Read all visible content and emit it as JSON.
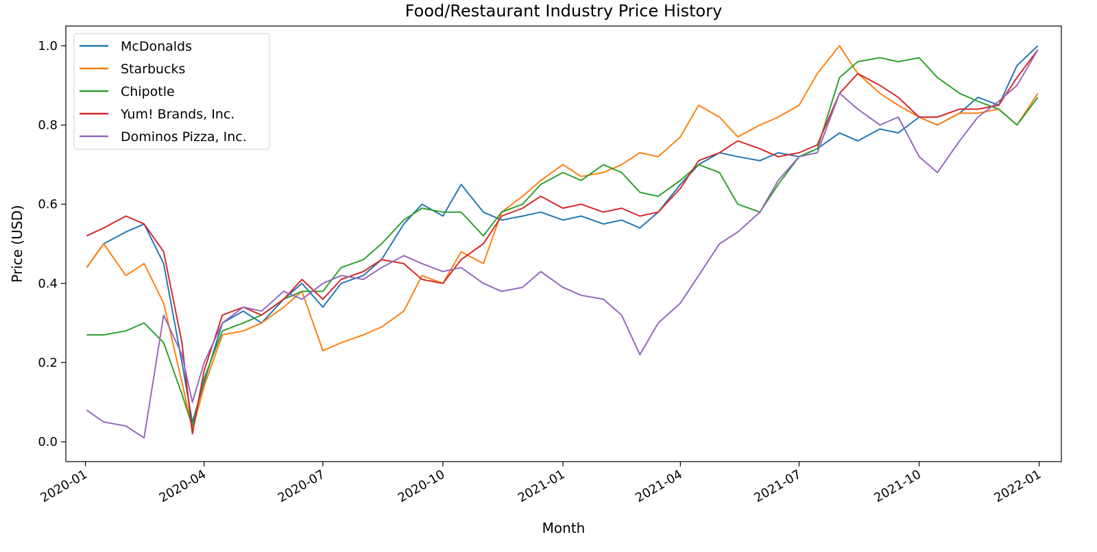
{
  "chart_data": {
    "type": "line",
    "title": "Food/Restaurant Industry Price History",
    "xlabel": "Month",
    "ylabel": "Price (USD)",
    "x_ticks": [
      "2020-01",
      "2020-04",
      "2020-07",
      "2020-10",
      "2021-01",
      "2021-04",
      "2021-07",
      "2021-10",
      "2022-01"
    ],
    "y_ticks": [
      "0.0",
      "0.2",
      "0.4",
      "0.6",
      "0.8",
      "1.0"
    ],
    "xlim": [
      "2019-12-17",
      "2022-01-18"
    ],
    "ylim": [
      -0.05,
      1.05
    ],
    "grid": false,
    "legend_position": "top-left",
    "x": [
      "2020-01-02",
      "2020-01-15",
      "2020-02-01",
      "2020-02-15",
      "2020-03-01",
      "2020-03-15",
      "2020-03-23",
      "2020-04-01",
      "2020-04-15",
      "2020-05-01",
      "2020-05-15",
      "2020-06-01",
      "2020-06-15",
      "2020-07-01",
      "2020-07-15",
      "2020-08-01",
      "2020-08-15",
      "2020-09-01",
      "2020-09-15",
      "2020-10-01",
      "2020-10-15",
      "2020-11-01",
      "2020-11-15",
      "2020-12-01",
      "2020-12-15",
      "2021-01-01",
      "2021-01-15",
      "2021-02-01",
      "2021-02-15",
      "2021-03-01",
      "2021-03-15",
      "2021-04-01",
      "2021-04-15",
      "2021-05-01",
      "2021-05-15",
      "2021-06-01",
      "2021-06-15",
      "2021-07-01",
      "2021-07-15",
      "2021-08-01",
      "2021-08-15",
      "2021-09-01",
      "2021-09-15",
      "2021-10-01",
      "2021-10-15",
      "2021-11-01",
      "2021-11-15",
      "2021-12-01",
      "2021-12-15",
      "2021-12-31"
    ],
    "series": [
      {
        "name": "McDonalds",
        "color": "#1f77b4",
        "values": [
          0.44,
          0.5,
          0.53,
          0.55,
          0.45,
          0.2,
          0.05,
          0.15,
          0.3,
          0.33,
          0.3,
          0.36,
          0.4,
          0.34,
          0.4,
          0.42,
          0.46,
          0.55,
          0.6,
          0.57,
          0.65,
          0.58,
          0.56,
          0.57,
          0.58,
          0.56,
          0.57,
          0.55,
          0.56,
          0.54,
          0.58,
          0.65,
          0.7,
          0.73,
          0.72,
          0.71,
          0.73,
          0.72,
          0.74,
          0.78,
          0.76,
          0.79,
          0.78,
          0.82,
          0.8,
          0.83,
          0.87,
          0.85,
          0.95,
          1.0
        ]
      },
      {
        "name": "Starbucks",
        "color": "#ff7f0e",
        "values": [
          0.44,
          0.5,
          0.42,
          0.45,
          0.35,
          0.15,
          0.03,
          0.14,
          0.27,
          0.28,
          0.3,
          0.34,
          0.38,
          0.23,
          0.25,
          0.27,
          0.29,
          0.33,
          0.42,
          0.4,
          0.48,
          0.45,
          0.58,
          0.62,
          0.66,
          0.7,
          0.67,
          0.68,
          0.7,
          0.73,
          0.72,
          0.77,
          0.85,
          0.82,
          0.77,
          0.8,
          0.82,
          0.85,
          0.93,
          1.0,
          0.93,
          0.88,
          0.85,
          0.82,
          0.8,
          0.83,
          0.83,
          0.84,
          0.8,
          0.88
        ]
      },
      {
        "name": "Chipotle",
        "color": "#2ca02c",
        "values": [
          0.27,
          0.27,
          0.28,
          0.3,
          0.25,
          0.12,
          0.04,
          0.16,
          0.28,
          0.3,
          0.32,
          0.36,
          0.38,
          0.38,
          0.44,
          0.46,
          0.5,
          0.56,
          0.59,
          0.58,
          0.58,
          0.52,
          0.58,
          0.6,
          0.65,
          0.68,
          0.66,
          0.7,
          0.68,
          0.63,
          0.62,
          0.66,
          0.7,
          0.68,
          0.6,
          0.58,
          0.65,
          0.72,
          0.74,
          0.92,
          0.96,
          0.97,
          0.96,
          0.97,
          0.92,
          0.88,
          0.86,
          0.84,
          0.8,
          0.87
        ]
      },
      {
        "name": "Yum! Brands, Inc.",
        "color": "#d62728",
        "values": [
          0.52,
          0.54,
          0.57,
          0.55,
          0.48,
          0.25,
          0.02,
          0.18,
          0.32,
          0.34,
          0.32,
          0.36,
          0.41,
          0.36,
          0.41,
          0.43,
          0.46,
          0.45,
          0.41,
          0.4,
          0.46,
          0.5,
          0.57,
          0.59,
          0.62,
          0.59,
          0.6,
          0.58,
          0.59,
          0.57,
          0.58,
          0.64,
          0.71,
          0.73,
          0.76,
          0.74,
          0.72,
          0.73,
          0.75,
          0.88,
          0.93,
          0.9,
          0.87,
          0.82,
          0.82,
          0.84,
          0.84,
          0.85,
          0.92,
          0.99
        ]
      },
      {
        "name": "Dominos Pizza, Inc.",
        "color": "#9467bd",
        "values": [
          0.08,
          0.05,
          0.04,
          0.01,
          0.32,
          0.22,
          0.1,
          0.2,
          0.3,
          0.34,
          0.33,
          0.38,
          0.36,
          0.4,
          0.42,
          0.41,
          0.44,
          0.47,
          0.45,
          0.43,
          0.44,
          0.4,
          0.38,
          0.39,
          0.43,
          0.39,
          0.37,
          0.36,
          0.32,
          0.22,
          0.3,
          0.35,
          0.42,
          0.5,
          0.53,
          0.58,
          0.66,
          0.72,
          0.73,
          0.88,
          0.84,
          0.8,
          0.82,
          0.72,
          0.68,
          0.76,
          0.82,
          0.86,
          0.9,
          0.99
        ]
      }
    ]
  }
}
